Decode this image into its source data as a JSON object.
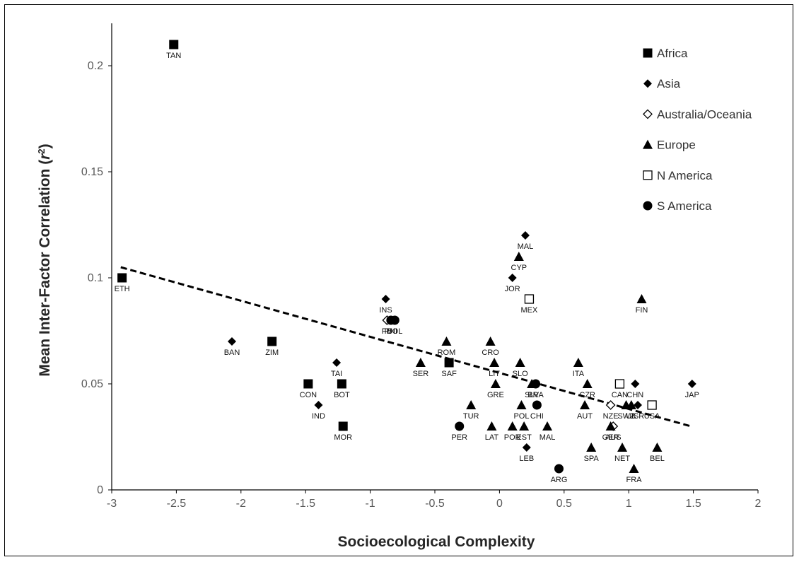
{
  "chart_data": {
    "type": "scatter",
    "title": "",
    "xlabel": "Socioecological Complexity",
    "ylabel_main": "Mean Inter-Factor Correlation (",
    "ylabel_sym": "r",
    "ylabel_sup": "2",
    "ylabel_close": ")",
    "xlim": [
      -3,
      2
    ],
    "ylim": [
      0,
      0.22
    ],
    "xticks": [
      -3,
      -2.5,
      -2,
      -1.5,
      -1,
      -0.5,
      0,
      0.5,
      1,
      1.5,
      2
    ],
    "xtick_labels": [
      "-3",
      "-2.5",
      "-2",
      "-1.5",
      "-1",
      "-0.5",
      "0",
      "0.5",
      "1",
      "1.5",
      "2"
    ],
    "yticks": [
      0,
      0.05,
      0.1,
      0.15,
      0.2
    ],
    "ytick_labels": [
      "0",
      "0.05",
      "0.1",
      "0.15",
      "0.2"
    ],
    "grid": false,
    "legend_position": "top-right",
    "trendline": {
      "style": "dashed",
      "x": [
        -2.93,
        1.48
      ],
      "y": [
        0.105,
        0.03
      ]
    },
    "series": [
      {
        "name": "Africa",
        "marker": "square-filled",
        "points": [
          {
            "label": "TAN",
            "x": -2.52,
            "y": 0.21
          },
          {
            "label": "ETH",
            "x": -2.92,
            "y": 0.1
          },
          {
            "label": "ZIM",
            "x": -1.76,
            "y": 0.07
          },
          {
            "label": "CON",
            "x": -1.48,
            "y": 0.05
          },
          {
            "label": "BOT",
            "x": -1.22,
            "y": 0.05
          },
          {
            "label": "MOR",
            "x": -1.21,
            "y": 0.03
          },
          {
            "label": "SAF",
            "x": -0.39,
            "y": 0.06
          }
        ]
      },
      {
        "name": "Asia",
        "marker": "diamond-filled",
        "points": [
          {
            "label": "BAN",
            "x": -2.07,
            "y": 0.07
          },
          {
            "label": "TAI",
            "x": -1.26,
            "y": 0.06
          },
          {
            "label": "IND",
            "x": -1.4,
            "y": 0.04
          },
          {
            "label": "INS",
            "x": -0.88,
            "y": 0.09
          },
          {
            "label": "MAL",
            "x": 0.2,
            "y": 0.12
          },
          {
            "label": "JOR",
            "x": 0.1,
            "y": 0.1
          },
          {
            "label": "CHN",
            "x": 1.05,
            "y": 0.05
          },
          {
            "label": "JAP",
            "x": 1.49,
            "y": 0.05
          },
          {
            "label": "LEB",
            "x": 0.21,
            "y": 0.02
          },
          {
            "label": "ISR",
            "x": 1.07,
            "y": 0.04
          }
        ]
      },
      {
        "name": "Australia/Oceania",
        "marker": "diamond-open",
        "points": [
          {
            "label": "FIJ",
            "x": -0.87,
            "y": 0.08
          },
          {
            "label": "NZE",
            "x": 0.86,
            "y": 0.04
          },
          {
            "label": "AUS",
            "x": 0.88,
            "y": 0.03
          }
        ]
      },
      {
        "name": "Europe",
        "marker": "triangle-filled",
        "points": [
          {
            "label": "CYP",
            "x": 0.15,
            "y": 0.11
          },
          {
            "label": "FIN",
            "x": 1.1,
            "y": 0.09
          },
          {
            "label": "ROM",
            "x": -0.41,
            "y": 0.07
          },
          {
            "label": "CRO",
            "x": -0.07,
            "y": 0.07
          },
          {
            "label": "SER",
            "x": -0.61,
            "y": 0.06
          },
          {
            "label": "LIT",
            "x": -0.04,
            "y": 0.06
          },
          {
            "label": "SLO",
            "x": 0.16,
            "y": 0.06
          },
          {
            "label": "ITA",
            "x": 0.61,
            "y": 0.06
          },
          {
            "label": "GRE",
            "x": -0.03,
            "y": 0.05
          },
          {
            "label": "SLV",
            "x": 0.25,
            "y": 0.05
          },
          {
            "label": "CZR",
            "x": 0.68,
            "y": 0.05
          },
          {
            "label": "TUR",
            "x": -0.22,
            "y": 0.04
          },
          {
            "label": "POL",
            "x": 0.17,
            "y": 0.04
          },
          {
            "label": "AUT",
            "x": 0.66,
            "y": 0.04
          },
          {
            "label": "SWZ",
            "x": 0.98,
            "y": 0.04
          },
          {
            "label": "UK",
            "x": 1.02,
            "y": 0.04
          },
          {
            "label": "LAT",
            "x": -0.06,
            "y": 0.03
          },
          {
            "label": "POR",
            "x": 0.1,
            "y": 0.03
          },
          {
            "label": "EST",
            "x": 0.19,
            "y": 0.03
          },
          {
            "label": "MAL",
            "x": 0.37,
            "y": 0.03
          },
          {
            "label": "GER",
            "x": 0.86,
            "y": 0.03
          },
          {
            "label": "SPA",
            "x": 0.71,
            "y": 0.02
          },
          {
            "label": "NET",
            "x": 0.95,
            "y": 0.02
          },
          {
            "label": "BEL",
            "x": 1.22,
            "y": 0.02
          },
          {
            "label": "FRA",
            "x": 1.04,
            "y": 0.01
          }
        ]
      },
      {
        "name": "N America",
        "marker": "square-open",
        "points": [
          {
            "label": "MEX",
            "x": 0.23,
            "y": 0.09
          },
          {
            "label": "CAN",
            "x": 0.93,
            "y": 0.05
          },
          {
            "label": "USA",
            "x": 1.18,
            "y": 0.04
          }
        ]
      },
      {
        "name": "S America",
        "marker": "circle-filled",
        "points": [
          {
            "label": "BOL",
            "x": -0.81,
            "y": 0.08
          },
          {
            "label": "PHI",
            "x": -0.84,
            "y": 0.08
          },
          {
            "label": "BRA",
            "x": 0.28,
            "y": 0.05
          },
          {
            "label": "CHI",
            "x": 0.29,
            "y": 0.04
          },
          {
            "label": "PER",
            "x": -0.31,
            "y": 0.03
          },
          {
            "label": "ARG",
            "x": 0.46,
            "y": 0.01
          }
        ]
      }
    ]
  }
}
